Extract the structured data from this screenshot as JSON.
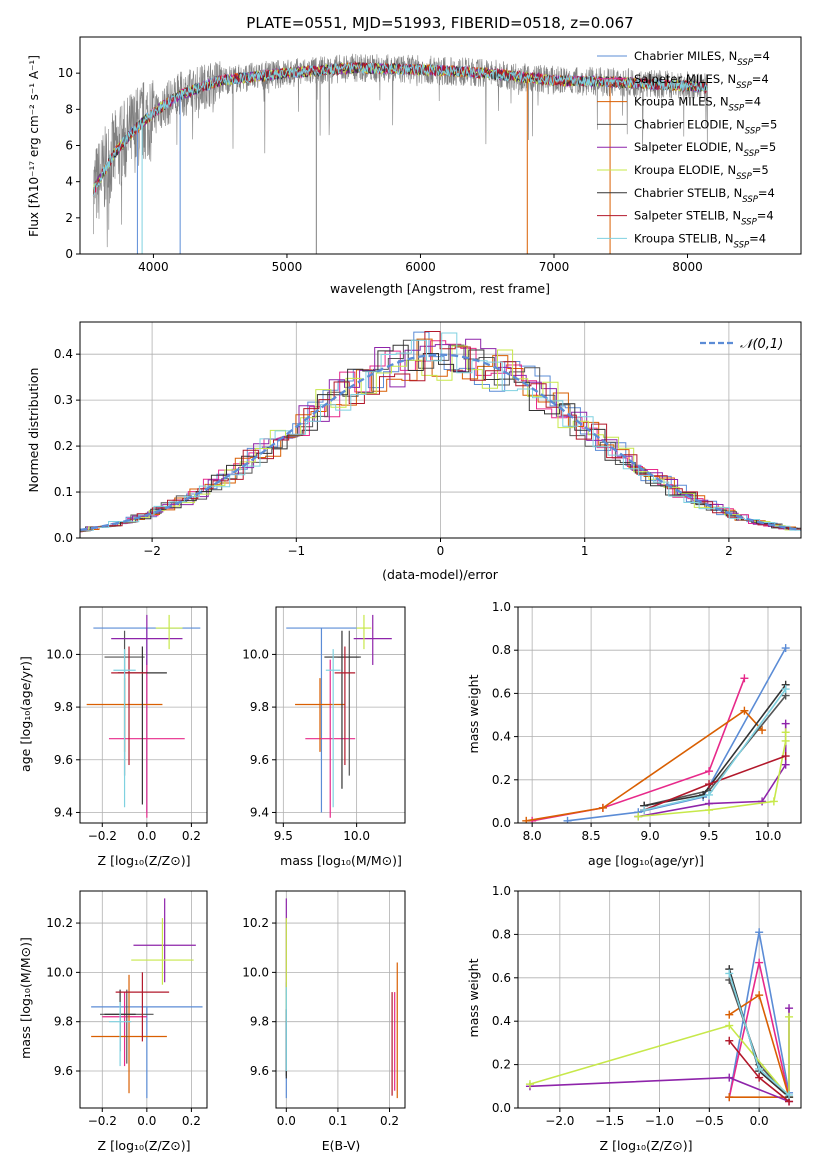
{
  "figure_title": "PLATE=0551, MJD=51993, FIBERID=0518, z=0.067",
  "series_styles": [
    {
      "name": "Chabrier MILES, N",
      "sub": "SSP",
      "tail": "=4",
      "color": "#5b8cd6"
    },
    {
      "name": "Salpeter MILES, N",
      "sub": "SSP",
      "tail": "=4",
      "color": "#e7298a"
    },
    {
      "name": "Kroupa MILES, N",
      "sub": "SSP",
      "tail": "=4",
      "color": "#d95f02"
    },
    {
      "name": "Chabrier ELODIE, N",
      "sub": "SSP",
      "tail": "=5",
      "color": "#555555"
    },
    {
      "name": "Salpeter ELODIE, N",
      "sub": "SSP",
      "tail": "=5",
      "color": "#8e24aa"
    },
    {
      "name": "Kroupa ELODIE, N",
      "sub": "SSP",
      "tail": "=5",
      "color": "#c7e84a"
    },
    {
      "name": "Chabrier STELIB, N",
      "sub": "SSP",
      "tail": "=4",
      "color": "#333333"
    },
    {
      "name": "Salpeter STELIB, N",
      "sub": "SSP",
      "tail": "=4",
      "color": "#b2182b"
    },
    {
      "name": "Kroupa STELIB, N",
      "sub": "SSP",
      "tail": "=4",
      "color": "#7fd1e0"
    }
  ],
  "chart_data": [
    {
      "id": "spectrum",
      "type": "line",
      "xlabel": "wavelength [Angstrom, rest frame]",
      "ylabel": "Flux [fλ10⁻¹⁷ erg cm⁻² s⁻¹ A⁻¹]",
      "xlim": [
        3450,
        8850
      ],
      "ylim": [
        0,
        12
      ],
      "xticks": [
        4000,
        5000,
        6000,
        7000,
        8000
      ],
      "yticks": [
        0,
        2,
        4,
        6,
        8,
        10
      ],
      "grid": false,
      "legend": "top-right",
      "data_range": [
        3550,
        8150
      ],
      "envelope": {
        "x": [
          3550,
          3700,
          3850,
          4000,
          4200,
          4500,
          5000,
          5500,
          6000,
          6500,
          7000,
          7500,
          8000,
          8150
        ],
        "y": [
          3.5,
          5.5,
          6.8,
          7.8,
          8.8,
          9.6,
          10.0,
          10.3,
          10.2,
          10.0,
          9.6,
          9.5,
          9.3,
          9.2
        ]
      }
    },
    {
      "id": "residuals",
      "type": "step",
      "xlabel": "(data-model)/error",
      "ylabel": "Normed distribution",
      "xlim": [
        -2.5,
        2.5
      ],
      "ylim": [
        0,
        0.47
      ],
      "xticks": [
        -2,
        -1,
        0,
        1,
        2
      ],
      "yticks": [
        0.0,
        0.1,
        0.2,
        0.3,
        0.4
      ],
      "grid": true,
      "legend": "top-right",
      "reference_label": "𝒩(0,1)",
      "reference": {
        "mean": 0,
        "sigma": 1,
        "color": "#5b8cd6"
      }
    },
    {
      "id": "age_vs_Z",
      "type": "errorbar",
      "xlabel": "Z [log₁₀(Z/Z⊙)]",
      "ylabel": "age  [log₁₀(age/yr)]",
      "xlim": [
        -0.3,
        0.27
      ],
      "ylim": [
        9.36,
        10.18
      ],
      "xticks": [
        -0.2,
        0.0,
        0.2
      ],
      "yticks": [
        9.4,
        9.6,
        9.8,
        10.0
      ],
      "grid": true,
      "points": [
        {
          "x": 0.0,
          "y": 10.1,
          "xerr": 0.24,
          "yerr": [
            0.7,
            0.0
          ],
          "c": 0
        },
        {
          "x": 0.0,
          "y": 9.68,
          "xerr": 0.17,
          "yerr": [
            0.3,
            0.3
          ],
          "c": 1
        },
        {
          "x": -0.1,
          "y": 9.81,
          "xerr": 0.17,
          "yerr": [
            0.18,
            0.1
          ],
          "c": 2
        },
        {
          "x": -0.1,
          "y": 9.99,
          "xerr": 0.09,
          "yerr": [
            0.45,
            0.1
          ],
          "c": 3
        },
        {
          "x": 0.0,
          "y": 10.06,
          "xerr": 0.16,
          "yerr": [
            0.1,
            0.09
          ],
          "c": 4
        },
        {
          "x": 0.1,
          "y": 10.1,
          "xerr": 0.06,
          "yerr": [
            0.08,
            0.05
          ],
          "c": 5
        },
        {
          "x": -0.02,
          "y": 9.93,
          "xerr": 0.11,
          "yerr": [
            0.5,
            0.1
          ],
          "c": 6
        },
        {
          "x": -0.08,
          "y": 9.93,
          "xerr": 0.08,
          "yerr": [
            0.35,
            0.1
          ],
          "c": 7
        },
        {
          "x": -0.1,
          "y": 9.94,
          "xerr": 0.05,
          "yerr": [
            0.52,
            0.08
          ],
          "c": 8
        }
      ]
    },
    {
      "id": "age_vs_mass",
      "type": "errorbar",
      "xlabel": "mass [log₁₀(M/M⊙)]",
      "ylabel": "",
      "xlim": [
        9.45,
        10.33
      ],
      "ylim": [
        9.36,
        10.18
      ],
      "xticks": [
        9.5,
        10.0
      ],
      "yticks": [
        9.4,
        9.6,
        9.8,
        10.0
      ],
      "grid": true,
      "points": [
        {
          "x": 9.76,
          "y": 10.1,
          "xerr": 0.24,
          "yerr": [
            0.7,
            0.0
          ],
          "c": 0
        },
        {
          "x": 9.82,
          "y": 9.68,
          "xerr": 0.17,
          "yerr": [
            0.3,
            0.3
          ],
          "c": 1
        },
        {
          "x": 9.75,
          "y": 9.81,
          "xerr": 0.17,
          "yerr": [
            0.18,
            0.1
          ],
          "c": 2
        },
        {
          "x": 9.95,
          "y": 9.99,
          "xerr": 0.08,
          "yerr": [
            0.45,
            0.1
          ],
          "c": 3
        },
        {
          "x": 10.11,
          "y": 10.06,
          "xerr": 0.13,
          "yerr": [
            0.1,
            0.09
          ],
          "c": 4
        },
        {
          "x": 10.05,
          "y": 10.1,
          "xerr": 0.05,
          "yerr": [
            0.08,
            0.05
          ],
          "c": 5
        },
        {
          "x": 9.9,
          "y": 9.99,
          "xerr": 0.12,
          "yerr": [
            0.5,
            0.1
          ],
          "c": 6
        },
        {
          "x": 9.92,
          "y": 9.93,
          "xerr": 0.07,
          "yerr": [
            0.35,
            0.1
          ],
          "c": 7
        },
        {
          "x": 9.84,
          "y": 9.94,
          "xerr": 0.05,
          "yerr": [
            0.52,
            0.08
          ],
          "c": 8
        }
      ]
    },
    {
      "id": "weight_vs_age",
      "type": "line",
      "xlabel": "age  [log₁₀(age/yr)]",
      "ylabel": "mass weight",
      "xlim": [
        7.88,
        10.28
      ],
      "ylim": [
        0,
        1
      ],
      "xticks": [
        8.0,
        8.5,
        9.0,
        9.5,
        10.0
      ],
      "yticks": [
        0.0,
        0.2,
        0.4,
        0.6,
        0.8,
        1.0
      ],
      "grid": true,
      "series": [
        {
          "c": 0,
          "x": [
            8.3,
            8.9,
            9.45,
            10.15
          ],
          "y": [
            0.01,
            0.05,
            0.12,
            0.81
          ]
        },
        {
          "c": 1,
          "x": [
            8.0,
            8.6,
            9.5,
            9.8
          ],
          "y": [
            0.01,
            0.07,
            0.24,
            0.67
          ]
        },
        {
          "c": 2,
          "x": [
            7.95,
            8.6,
            9.8,
            9.95
          ],
          "y": [
            0.01,
            0.07,
            0.52,
            0.43
          ]
        },
        {
          "c": 3,
          "x": [
            8.95,
            9.5,
            10.15
          ],
          "y": [
            0.08,
            0.15,
            0.59
          ]
        },
        {
          "c": 4,
          "x": [
            8.9,
            9.5,
            9.95,
            10.15,
            10.15
          ],
          "y": [
            0.03,
            0.09,
            0.1,
            0.27,
            0.46
          ]
        },
        {
          "c": 5,
          "x": [
            8.9,
            9.5,
            10.05,
            10.15,
            10.15
          ],
          "y": [
            0.03,
            0.06,
            0.1,
            0.38,
            0.42
          ]
        },
        {
          "c": 6,
          "x": [
            8.95,
            9.45,
            10.15
          ],
          "y": [
            0.08,
            0.13,
            0.64
          ]
        },
        {
          "c": 7,
          "x": [
            8.95,
            9.5,
            10.15
          ],
          "y": [
            0.06,
            0.18,
            0.31
          ]
        },
        {
          "c": 8,
          "x": [
            8.95,
            9.5,
            10.15
          ],
          "y": [
            0.06,
            0.13,
            0.62
          ]
        }
      ]
    },
    {
      "id": "mass_vs_Z",
      "type": "errorbar",
      "xlabel": "Z [log₁₀(Z/Z⊙)]",
      "ylabel": "mass [log₁₀(M/M⊙)]",
      "xlim": [
        -0.3,
        0.27
      ],
      "ylim": [
        9.45,
        10.33
      ],
      "xticks": [
        -0.2,
        0.0,
        0.2
      ],
      "yticks": [
        9.6,
        9.8,
        10.0,
        10.2
      ],
      "grid": true,
      "points": [
        {
          "x": 0.0,
          "y": 9.86,
          "xerr": 0.25,
          "yerr": [
            0.37,
            0.0
          ],
          "c": 0
        },
        {
          "x": -0.1,
          "y": 9.82,
          "xerr": 0.1,
          "yerr": [
            0.2,
            0.1
          ],
          "c": 1
        },
        {
          "x": -0.08,
          "y": 9.74,
          "xerr": 0.17,
          "yerr": [
            0.23,
            0.25
          ],
          "c": 2
        },
        {
          "x": -0.09,
          "y": 9.83,
          "xerr": 0.12,
          "yerr": [
            0.2,
            0.1
          ],
          "c": 3
        },
        {
          "x": 0.08,
          "y": 10.11,
          "xerr": 0.14,
          "yerr": [
            0.15,
            0.19
          ],
          "c": 4
        },
        {
          "x": 0.07,
          "y": 10.05,
          "xerr": 0.14,
          "yerr": [
            0.1,
            0.17
          ],
          "c": 5
        },
        {
          "x": -0.12,
          "y": 9.83,
          "xerr": 0.07,
          "yerr": [
            0.15,
            0.1
          ],
          "c": 6
        },
        {
          "x": -0.02,
          "y": 9.92,
          "xerr": 0.12,
          "yerr": [
            0.2,
            0.08
          ],
          "c": 7
        },
        {
          "x": -0.12,
          "y": 9.8,
          "xerr": 0.05,
          "yerr": [
            0.18,
            0.08
          ],
          "c": 8
        }
      ]
    },
    {
      "id": "mass_vs_EBV",
      "type": "errorbar",
      "xlabel": "E(B-V)",
      "ylabel": "",
      "xlim": [
        -0.02,
        0.23
      ],
      "ylim": [
        9.45,
        10.33
      ],
      "xticks": [
        0.0,
        0.1,
        0.2
      ],
      "yticks": [
        9.6,
        9.8,
        10.0,
        10.2
      ],
      "grid": true,
      "points": [
        {
          "x": 0.0,
          "y": 9.86,
          "xerr": 0.0,
          "yerr": [
            0.37,
            0.1
          ],
          "c": 0
        },
        {
          "x": 0.21,
          "y": 9.82,
          "xerr": 0.0,
          "yerr": [
            0.3,
            0.1
          ],
          "c": 1
        },
        {
          "x": 0.215,
          "y": 9.74,
          "xerr": 0.0,
          "yerr": [
            0.25,
            0.3
          ],
          "c": 2
        },
        {
          "x": 0.0,
          "y": 9.83,
          "xerr": 0.0,
          "yerr": [
            0.25,
            0.1
          ],
          "c": 3
        },
        {
          "x": 0.0,
          "y": 10.11,
          "xerr": 0.0,
          "yerr": [
            0.2,
            0.19
          ],
          "c": 4
        },
        {
          "x": 0.0,
          "y": 10.05,
          "xerr": 0.0,
          "yerr": [
            0.25,
            0.17
          ],
          "c": 5
        },
        {
          "x": 0.0,
          "y": 9.75,
          "xerr": 0.0,
          "yerr": [
            0.18,
            0.1
          ],
          "c": 6
        },
        {
          "x": 0.205,
          "y": 9.7,
          "xerr": 0.0,
          "yerr": [
            0.2,
            0.22
          ],
          "c": 7
        },
        {
          "x": 0.0,
          "y": 9.8,
          "xerr": 0.0,
          "yerr": [
            0.2,
            0.14
          ],
          "c": 8
        }
      ]
    },
    {
      "id": "weight_vs_Z",
      "type": "line",
      "xlabel": "Z [log₁₀(Z/Z⊙)]",
      "ylabel": "mass weight",
      "xlim": [
        -2.42,
        0.42
      ],
      "ylim": [
        0,
        1
      ],
      "xticks": [
        -2.0,
        -1.5,
        -1.0,
        -0.5,
        0.0
      ],
      "yticks": [
        0.0,
        0.2,
        0.4,
        0.6,
        0.8,
        1.0
      ],
      "grid": true,
      "series": [
        {
          "c": 0,
          "x": [
            -0.3,
            0.0,
            0.3
          ],
          "y": [
            0.05,
            0.81,
            0.07
          ]
        },
        {
          "c": 1,
          "x": [
            -0.3,
            0.0,
            0.3
          ],
          "y": [
            0.05,
            0.67,
            0.05
          ]
        },
        {
          "c": 2,
          "x": [
            -0.3,
            0.0,
            0.3,
            -0.3
          ],
          "y": [
            0.43,
            0.52,
            0.05,
            0.05
          ]
        },
        {
          "c": 3,
          "x": [
            -0.3,
            0.0,
            0.3
          ],
          "y": [
            0.59,
            0.2,
            0.05
          ]
        },
        {
          "c": 4,
          "x": [
            -2.3,
            -0.3,
            0.3,
            0.3
          ],
          "y": [
            0.1,
            0.14,
            0.03,
            0.46
          ]
        },
        {
          "c": 5,
          "x": [
            -2.3,
            -0.3,
            0.3,
            0.3
          ],
          "y": [
            0.11,
            0.38,
            0.05,
            0.42
          ]
        },
        {
          "c": 6,
          "x": [
            -0.3,
            0.0,
            0.3
          ],
          "y": [
            0.64,
            0.17,
            0.05
          ]
        },
        {
          "c": 7,
          "x": [
            -0.3,
            0.0,
            0.3
          ],
          "y": [
            0.31,
            0.14,
            0.03
          ]
        },
        {
          "c": 8,
          "x": [
            -0.3,
            0.0,
            0.3
          ],
          "y": [
            0.62,
            0.18,
            0.06
          ]
        }
      ]
    }
  ]
}
